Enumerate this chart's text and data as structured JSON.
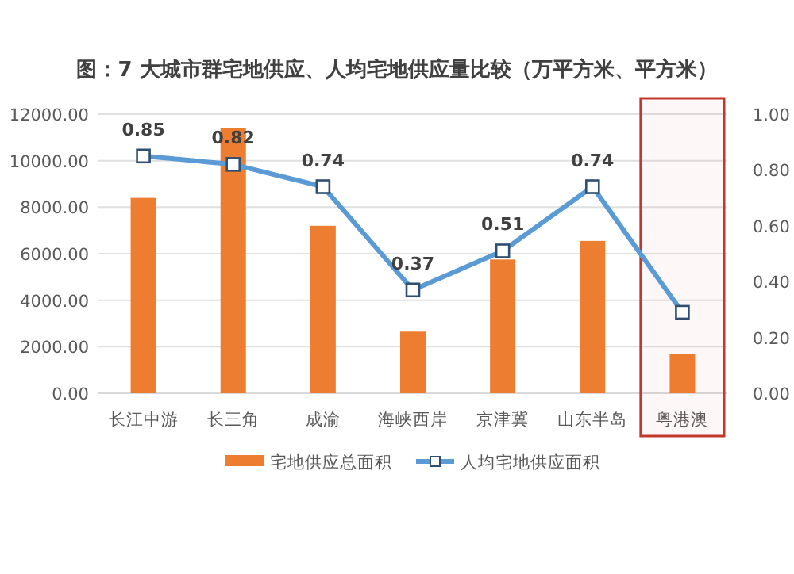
{
  "chart_data": {
    "type": "bar",
    "title": "图：7 大城市群宅地供应、人均宅地供应量比较（万平方米、平方米）",
    "categories": [
      "长江中游",
      "长三角",
      "成渝",
      "海峡西岸",
      "京津冀",
      "山东半岛",
      "粤港澳"
    ],
    "series": [
      {
        "name": "宅地供应总面积",
        "color": "#ed7d31",
        "values": [
          8400,
          11400,
          7200,
          2650,
          5750,
          6550,
          1700
        ]
      },
      {
        "name": "人均宅地供应面积",
        "type": "line",
        "axis": "y2",
        "color": "#5b9bd5",
        "marker": "square",
        "values": [
          0.85,
          0.82,
          0.74,
          0.37,
          0.51,
          0.74,
          0.29
        ],
        "value_labels": [
          "0.85",
          "0.82",
          "0.74",
          "0.37",
          "0.51",
          "0.74",
          null
        ]
      }
    ],
    "ylim": [
      0,
      12000
    ],
    "yticks": [
      {
        "value": 0,
        "label": "0.00"
      },
      {
        "value": 2000,
        "label": "2000.00"
      },
      {
        "value": 4000,
        "label": "4000.00"
      },
      {
        "value": 6000,
        "label": "6000.00"
      },
      {
        "value": 8000,
        "label": "8000.00"
      },
      {
        "value": 10000,
        "label": "10000.00"
      },
      {
        "value": 12000,
        "label": "12000.00"
      }
    ],
    "y2lim": [
      0,
      1
    ],
    "y2ticks": [
      {
        "value": 0,
        "label": "0.00"
      },
      {
        "value": 0.2,
        "label": "0.20"
      },
      {
        "value": 0.4,
        "label": "0.40"
      },
      {
        "value": 0.6,
        "label": "0.60"
      },
      {
        "value": 0.8,
        "label": "0.80"
      },
      {
        "value": 1,
        "label": "1.00"
      }
    ],
    "bands": [
      {
        "axis": "x",
        "from": "粤港澳",
        "to": "粤港澳",
        "color": "#c0392b"
      }
    ],
    "grid": "y",
    "legend": "bottom"
  }
}
